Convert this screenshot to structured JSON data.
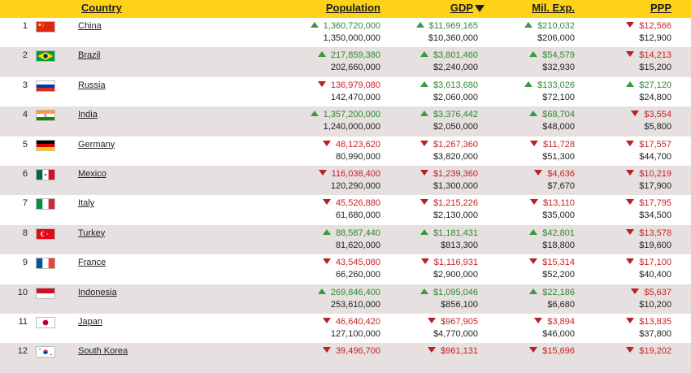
{
  "header": {
    "country": "Country",
    "population": "Population",
    "gdp": "GDP",
    "mil_exp": "Mil. Exp.",
    "ppp": "PPP"
  },
  "colors": {
    "header_bg": "#ffd21a",
    "alt_row_bg": "#e6e0e0",
    "up": "#2e8b2e",
    "down": "#cc1f1f"
  },
  "rows": [
    {
      "rank": "1",
      "flag": "china-flag-icon",
      "country": "China",
      "pop": {
        "dir": "up",
        "v1": "1,360,720,000",
        "v2": "1,350,000,000"
      },
      "gdp": {
        "dir": "up",
        "v1": "$11,969,165",
        "v2": "$10,360,000"
      },
      "mil": {
        "dir": "up",
        "v1": "$210,032",
        "v2": "$206,000"
      },
      "ppp": {
        "dir": "down",
        "v1": "$12,566",
        "v2": "$12,900"
      }
    },
    {
      "rank": "2",
      "flag": "brazil-flag-icon",
      "country": "Brazil",
      "pop": {
        "dir": "up",
        "v1": "217,859,380",
        "v2": "202,660,000"
      },
      "gdp": {
        "dir": "up",
        "v1": "$3,801,460",
        "v2": "$2,240,000"
      },
      "mil": {
        "dir": "up",
        "v1": "$54,579",
        "v2": "$32,930"
      },
      "ppp": {
        "dir": "down",
        "v1": "$14,213",
        "v2": "$15,200"
      }
    },
    {
      "rank": "3",
      "flag": "russia-flag-icon",
      "country": "Russia",
      "pop": {
        "dir": "down",
        "v1": "136,979,080",
        "v2": "142,470,000"
      },
      "gdp": {
        "dir": "up",
        "v1": "$3,613,680",
        "v2": "$2,060,000"
      },
      "mil": {
        "dir": "up",
        "v1": "$133,026",
        "v2": "$72,100"
      },
      "ppp": {
        "dir": "up",
        "v1": "$27,120",
        "v2": "$24,800"
      }
    },
    {
      "rank": "4",
      "flag": "india-flag-icon",
      "country": "India",
      "pop": {
        "dir": "up",
        "v1": "1,357,200,000",
        "v2": "1,240,000,000"
      },
      "gdp": {
        "dir": "up",
        "v1": "$3,376,442",
        "v2": "$2,050,000"
      },
      "mil": {
        "dir": "up",
        "v1": "$68,704",
        "v2": "$48,000"
      },
      "ppp": {
        "dir": "down",
        "v1": "$3,554",
        "v2": "$5,800"
      }
    },
    {
      "rank": "5",
      "flag": "germany-flag-icon",
      "country": "Germany",
      "pop": {
        "dir": "down",
        "v1": "48,123,620",
        "v2": "80,990,000"
      },
      "gdp": {
        "dir": "down",
        "v1": "$1,267,360",
        "v2": "$3,820,000"
      },
      "mil": {
        "dir": "down",
        "v1": "$11,728",
        "v2": "$51,300"
      },
      "ppp": {
        "dir": "down",
        "v1": "$17,557",
        "v2": "$44,700"
      }
    },
    {
      "rank": "6",
      "flag": "mexico-flag-icon",
      "country": "Mexico",
      "pop": {
        "dir": "down",
        "v1": "116,038,400",
        "v2": "120,290,000"
      },
      "gdp": {
        "dir": "down",
        "v1": "$1,239,360",
        "v2": "$1,300,000"
      },
      "mil": {
        "dir": "down",
        "v1": "$4,636",
        "v2": "$7,670"
      },
      "ppp": {
        "dir": "down",
        "v1": "$10,219",
        "v2": "$17,900"
      }
    },
    {
      "rank": "7",
      "flag": "italy-flag-icon",
      "country": "Italy",
      "pop": {
        "dir": "down",
        "v1": "45,526,880",
        "v2": "61,680,000"
      },
      "gdp": {
        "dir": "down",
        "v1": "$1,215,226",
        "v2": "$2,130,000"
      },
      "mil": {
        "dir": "down",
        "v1": "$13,110",
        "v2": "$35,000"
      },
      "ppp": {
        "dir": "down",
        "v1": "$17,795",
        "v2": "$34,500"
      }
    },
    {
      "rank": "8",
      "flag": "turkey-flag-icon",
      "country": "Turkey",
      "pop": {
        "dir": "up",
        "v1": "88,587,440",
        "v2": "81,620,000"
      },
      "gdp": {
        "dir": "up",
        "v1": "$1,181,431",
        "v2": "$813,300"
      },
      "mil": {
        "dir": "up",
        "v1": "$42,801",
        "v2": "$18,800"
      },
      "ppp": {
        "dir": "down",
        "v1": "$13,578",
        "v2": "$19,600"
      }
    },
    {
      "rank": "9",
      "flag": "france-flag-icon",
      "country": "France",
      "pop": {
        "dir": "down",
        "v1": "43,545,080",
        "v2": "66,260,000"
      },
      "gdp": {
        "dir": "down",
        "v1": "$1,116,931",
        "v2": "$2,900,000"
      },
      "mil": {
        "dir": "down",
        "v1": "$15,314",
        "v2": "$52,200"
      },
      "ppp": {
        "dir": "down",
        "v1": "$17,100",
        "v2": "$40,400"
      }
    },
    {
      "rank": "10",
      "flag": "indonesia-flag-icon",
      "country": "Indonesia",
      "pop": {
        "dir": "up",
        "v1": "269,846,400",
        "v2": "253,610,000"
      },
      "gdp": {
        "dir": "up",
        "v1": "$1,095,046",
        "v2": "$856,100"
      },
      "mil": {
        "dir": "up",
        "v1": "$22,186",
        "v2": "$6,680"
      },
      "ppp": {
        "dir": "down",
        "v1": "$5,637",
        "v2": "$10,200"
      }
    },
    {
      "rank": "11",
      "flag": "japan-flag-icon",
      "country": "Japan",
      "pop": {
        "dir": "down",
        "v1": "46,640,420",
        "v2": "127,100,000"
      },
      "gdp": {
        "dir": "down",
        "v1": "$967,905",
        "v2": "$4,770,000"
      },
      "mil": {
        "dir": "down",
        "v1": "$3,894",
        "v2": "$46,000"
      },
      "ppp": {
        "dir": "down",
        "v1": "$13,835",
        "v2": "$37,800"
      }
    },
    {
      "rank": "12",
      "flag": "south-korea-flag-icon",
      "country": "South Korea",
      "pop": {
        "dir": "down",
        "v1": "39,496,700",
        "v2": ""
      },
      "gdp": {
        "dir": "down",
        "v1": "$961,131",
        "v2": ""
      },
      "mil": {
        "dir": "down",
        "v1": "$15,696",
        "v2": ""
      },
      "ppp": {
        "dir": "down",
        "v1": "$19,202",
        "v2": ""
      }
    }
  ]
}
